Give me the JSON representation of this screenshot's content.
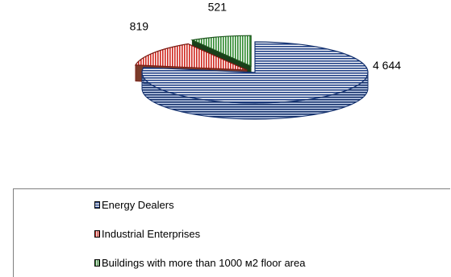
{
  "chart_data": {
    "type": "pie",
    "three_d": true,
    "exploded": true,
    "categories": [
      "Energy Dealers",
      "Industrial Enterprises",
      "Buildings with more than 1000 м2 floor area"
    ],
    "values": [
      4644,
      819,
      521
    ],
    "data_labels": [
      "4 644",
      "819",
      "521"
    ],
    "colors": [
      "#1f3f85",
      "#c0241c",
      "#2b7a2b"
    ],
    "pattern": "hatched",
    "legend_position": "bottom"
  }
}
